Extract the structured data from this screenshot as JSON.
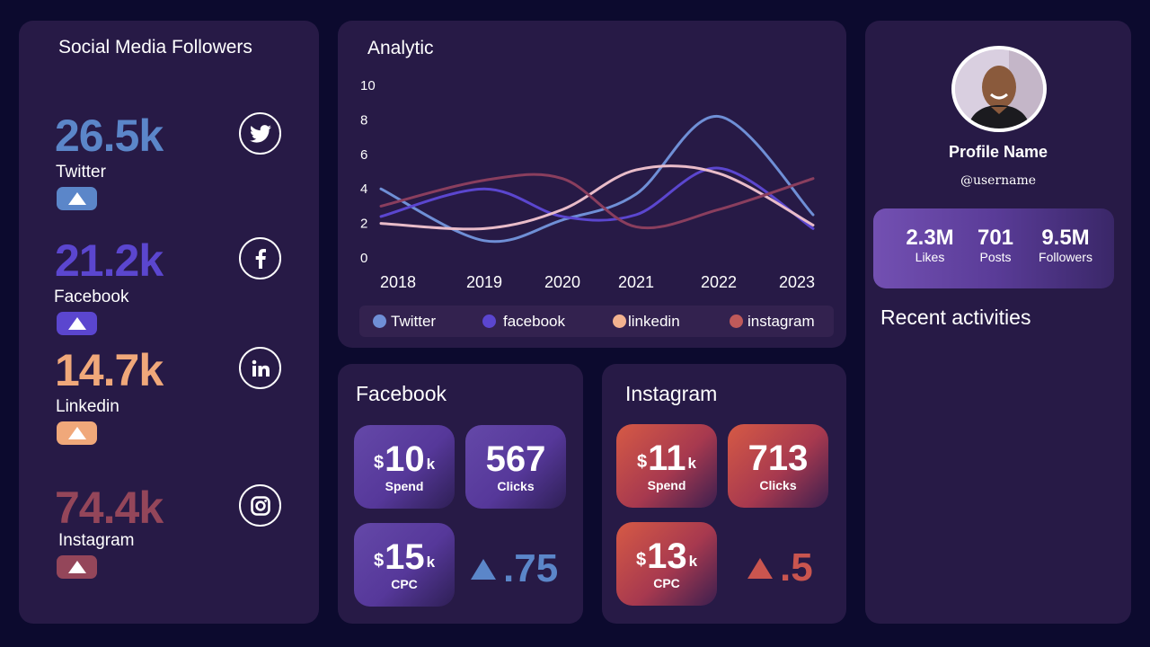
{
  "followers": {
    "title": "Social Media Followers",
    "items": [
      {
        "value": "26.5k",
        "label": "Twitter",
        "color": "#5b86c9",
        "icon": "twitter-icon"
      },
      {
        "value": "21.2k",
        "label": "Facebook",
        "color": "#5b46cf",
        "icon": "facebook-icon"
      },
      {
        "value": "14.7k",
        "label": "Linkedin",
        "color": "#f0a87a",
        "icon": "linkedin-icon"
      },
      {
        "value": "74.4k",
        "label": "Instagram",
        "color": "#94465a",
        "icon": "instagram-icon"
      }
    ]
  },
  "analytic": {
    "title": "Analytic",
    "legend": [
      {
        "label": "Twitter",
        "color": "#6f8fd6"
      },
      {
        "label": "facebook",
        "color": "#5b46cf"
      },
      {
        "label": "linkedin",
        "color": "#f2b28f"
      },
      {
        "label": "instagram",
        "color": "#c05a5a"
      }
    ]
  },
  "chart_data": {
    "type": "line",
    "x": [
      "2018",
      "2019",
      "2020",
      "2021",
      "2022",
      "2023"
    ],
    "ylim": [
      0,
      10
    ],
    "yticks": [
      "0",
      "2",
      "4",
      "6",
      "8",
      "10"
    ],
    "grid": false,
    "legend_position": "bottom",
    "series": [
      {
        "name": "Twitter",
        "color": "#6f8fd6",
        "values": [
          4,
          1,
          2.2,
          3.7,
          8.2,
          2.5
        ]
      },
      {
        "name": "facebook",
        "color": "#5b46cf",
        "values": [
          2.4,
          4,
          2.4,
          2.5,
          5.2,
          1.7
        ]
      },
      {
        "name": "linkedin",
        "color": "#e9bcc9",
        "values": [
          2,
          1.7,
          2.8,
          5.1,
          4.9,
          1.9
        ]
      },
      {
        "name": "instagram",
        "color": "#8a3e5e",
        "values": [
          3,
          4.5,
          4.6,
          1.8,
          2.8,
          4.6
        ]
      }
    ]
  },
  "facebook": {
    "title": "Facebook",
    "spend": {
      "currency": "$",
      "value": "10",
      "unit": "k",
      "label": "Spend"
    },
    "clicks": {
      "value": "567",
      "label": "Clicks"
    },
    "cpc": {
      "currency": "$",
      "value": "15",
      "unit": "k",
      "label": "CPC"
    },
    "delta": ".75",
    "delta_color": "#5b86c9"
  },
  "instagram": {
    "title": "Instagram",
    "spend": {
      "currency": "$",
      "value": "11",
      "unit": "k",
      "label": "Spend"
    },
    "clicks": {
      "value": "713",
      "label": "Clicks"
    },
    "cpc": {
      "currency": "$",
      "value": "13",
      "unit": "k",
      "label": "CPC"
    },
    "delta": ".5",
    "delta_color": "#c9554f"
  },
  "profile": {
    "name": "Profile Name",
    "username": "@username",
    "stats": [
      {
        "value": "2.3M",
        "label": "Likes"
      },
      {
        "value": "701",
        "label": "Posts"
      },
      {
        "value": "9.5M",
        "label": "Followers"
      }
    ],
    "recent_title": "Recent activities"
  }
}
